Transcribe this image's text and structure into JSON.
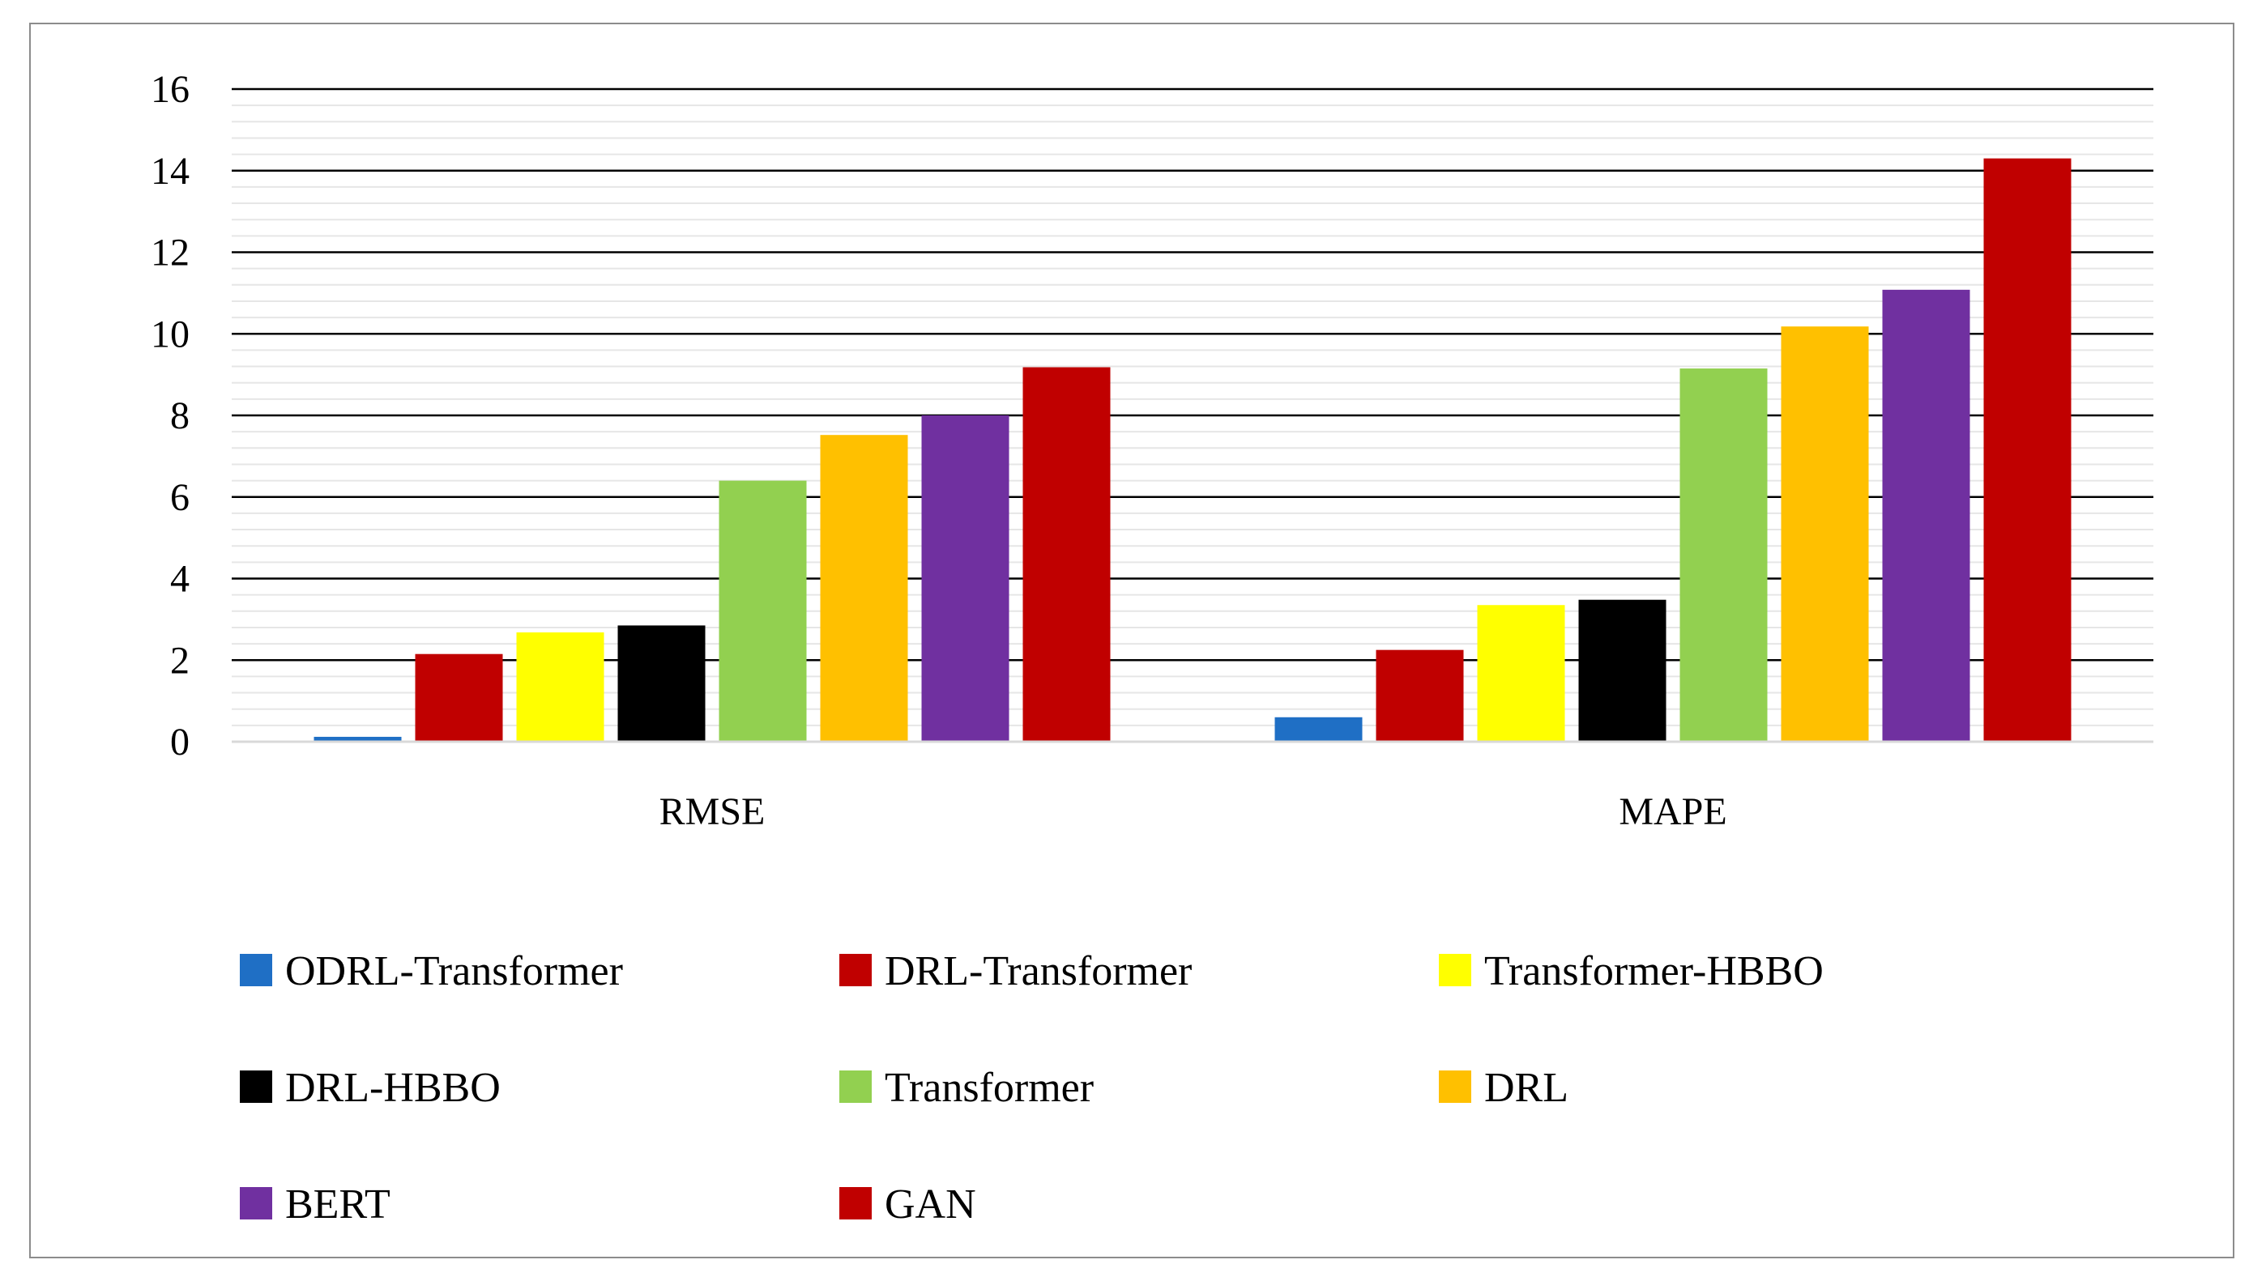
{
  "chart_data": {
    "type": "bar",
    "title": "",
    "xlabel": "",
    "ylabel": "",
    "categories": [
      "RMSE",
      "MAPE"
    ],
    "ylim": [
      0,
      16
    ],
    "yticks": [
      0,
      2,
      4,
      6,
      8,
      10,
      12,
      14,
      16
    ],
    "grid": true,
    "legend_position": "bottom",
    "series": [
      {
        "name": "ODRL-Transformer",
        "color": "#1f6fc5",
        "values": [
          0.12,
          0.6
        ]
      },
      {
        "name": "DRL-Transformer",
        "color": "#c00000",
        "values": [
          2.15,
          2.25
        ]
      },
      {
        "name": "Transformer-HBBO",
        "color": "#ffff00",
        "values": [
          2.68,
          3.35
        ]
      },
      {
        "name": "DRL-HBBO",
        "color": "#000000",
        "values": [
          2.85,
          3.48
        ]
      },
      {
        "name": "Transformer",
        "color": "#92d050",
        "values": [
          6.4,
          9.15
        ]
      },
      {
        "name": "DRL",
        "color": "#ffc000",
        "values": [
          7.52,
          10.18
        ]
      },
      {
        "name": "BERT",
        "color": "#7030a0",
        "values": [
          8.0,
          11.08
        ]
      },
      {
        "name": "GAN",
        "color": "#c00000",
        "values": [
          9.18,
          14.3
        ]
      }
    ]
  }
}
